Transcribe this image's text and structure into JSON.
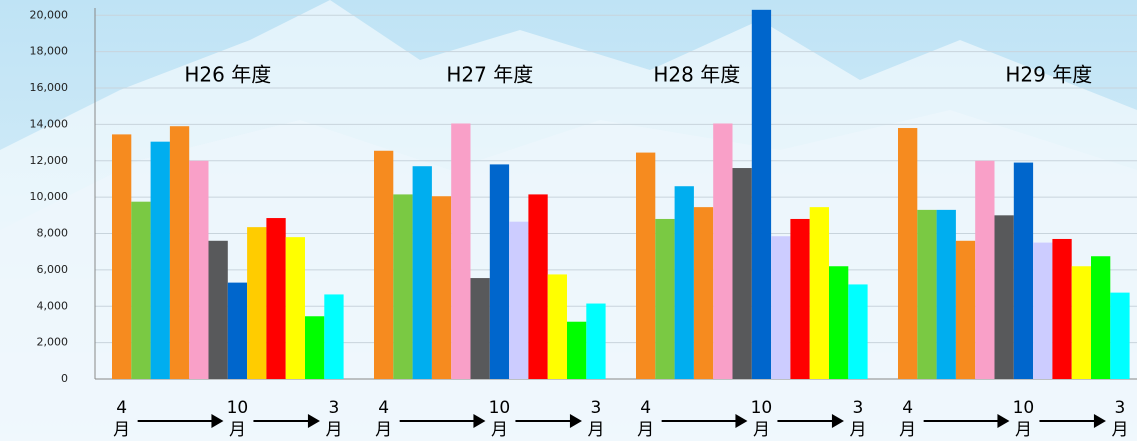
{
  "chart_data": {
    "type": "bar",
    "categories": [
      "4月",
      null,
      null,
      null,
      null,
      null,
      "10月",
      null,
      null,
      null,
      null,
      "3月"
    ],
    "series": [
      {
        "name": "H26 年度",
        "values": [
          13450,
          9750,
          13050,
          13900,
          12000,
          7600,
          5300,
          8350,
          8850,
          7800,
          3450,
          4650
        ],
        "colors": [
          "#f68b1f",
          "#7ac943",
          "#00aeef",
          "#f68b1f",
          "#f9a0c8",
          "#58595b",
          "#0066cc",
          "#ffcc00",
          "#ff0000",
          "#ffff00",
          "#00ff00",
          "#00ffff"
        ]
      },
      {
        "name": "H27 年度",
        "values": [
          12550,
          10150,
          11700,
          10050,
          14050,
          5550,
          11800,
          8650,
          10150,
          5750,
          3150,
          4150
        ],
        "colors": [
          "#f68b1f",
          "#7ac943",
          "#00aeef",
          "#f68b1f",
          "#f9a0c8",
          "#58595b",
          "#0066cc",
          "#ccccff",
          "#ff0000",
          "#ffff00",
          "#00ff00",
          "#00ffff"
        ]
      },
      {
        "name": "H28 年度",
        "values": [
          12450,
          8800,
          10600,
          9450,
          14050,
          11600,
          20300,
          7850,
          8800,
          9450,
          6200,
          5200
        ],
        "colors": [
          "#f68b1f",
          "#7ac943",
          "#00aeef",
          "#f68b1f",
          "#f9a0c8",
          "#58595b",
          "#0066cc",
          "#ccccff",
          "#ff0000",
          "#ffff00",
          "#00ff00",
          "#00ffff"
        ]
      },
      {
        "name": "H29 年度",
        "values": [
          13800,
          9300,
          9300,
          7600,
          12000,
          9000,
          11900,
          7500,
          7700,
          6200,
          6750,
          4750
        ],
        "colors": [
          "#f68b1f",
          "#7ac943",
          "#00aeef",
          "#f68b1f",
          "#f9a0c8",
          "#58595b",
          "#0066cc",
          "#ccccff",
          "#ff0000",
          "#ffff00",
          "#00ff00",
          "#00ffff"
        ]
      }
    ],
    "ylim": [
      0,
      20400
    ],
    "yticks": [
      0,
      {
        "value": 2000,
        "label": "2,000"
      },
      {
        "value": 4000,
        "label": "4,000"
      },
      {
        "value": 6000,
        "label": "6,000"
      },
      {
        "value": 8000,
        "label": "8,000"
      },
      {
        "value": 10000,
        "label": "10,000"
      },
      {
        "value": 12000,
        "label": "12,000"
      },
      {
        "value": 14000,
        "label": "14,000"
      },
      {
        "value": 16000,
        "label": "16,000"
      },
      {
        "value": 18000,
        "label": "18,000"
      },
      {
        "value": 20000,
        "label": "20,000"
      }
    ],
    "grid": true
  }
}
